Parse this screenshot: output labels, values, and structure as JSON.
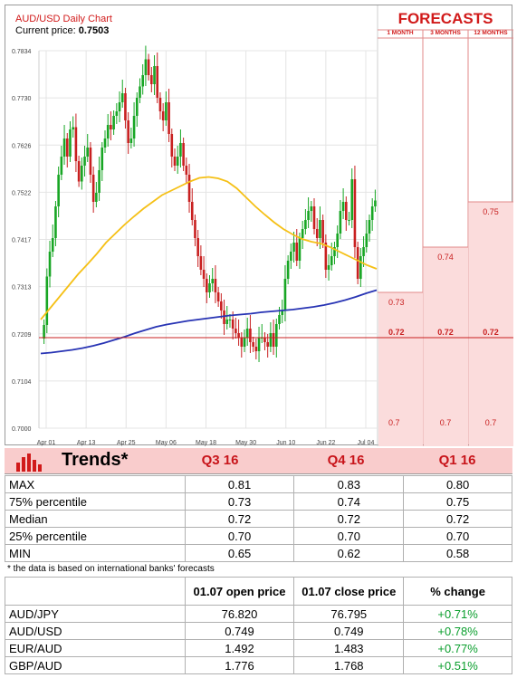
{
  "chart_data": {
    "type": "candlestick",
    "title": "AUD/USD Daily Chart",
    "current_price_label": "Current price:",
    "current_price": "0.7503",
    "y_ticks": [
      "0.7834",
      "0.7730",
      "0.7626",
      "0.7522",
      "0.7417",
      "0.7313",
      "0.7209",
      "0.7104",
      "0.7000"
    ],
    "ylim": [
      0.7,
      0.7834
    ],
    "x_ticks": [
      "Apr 01",
      "Apr 13",
      "Apr 25",
      "May 06",
      "May 18",
      "May 30",
      "Jun 10",
      "Jun 22",
      "Jul 04"
    ],
    "candles_close": [
      0.7228,
      0.7335,
      0.739,
      0.742,
      0.749,
      0.756,
      0.76,
      0.764,
      0.76,
      0.766,
      0.7665,
      0.759,
      0.7545,
      0.758,
      0.76,
      0.762,
      0.756,
      0.75,
      0.752,
      0.757,
      0.762,
      0.764,
      0.767,
      0.766,
      0.769,
      0.77,
      0.772,
      0.774,
      0.768,
      0.763,
      0.764,
      0.769,
      0.773,
      0.7755,
      0.778,
      0.7815,
      0.778,
      0.776,
      0.78,
      0.773,
      0.77,
      0.768,
      0.772,
      0.765,
      0.76,
      0.758,
      0.76,
      0.763,
      0.758,
      0.756,
      0.75,
      0.746,
      0.742,
      0.738,
      0.735,
      0.733,
      0.73,
      0.732,
      0.733,
      0.73,
      0.728,
      0.726,
      0.723,
      0.724,
      0.724,
      0.722,
      0.721,
      0.72,
      0.718,
      0.72,
      0.722,
      0.719,
      0.718,
      0.717,
      0.72,
      0.72,
      0.719,
      0.718,
      0.721,
      0.718,
      0.723,
      0.725,
      0.726,
      0.733,
      0.737,
      0.739,
      0.741,
      0.737,
      0.742,
      0.744,
      0.746,
      0.748,
      0.749,
      0.744,
      0.742,
      0.746,
      0.741,
      0.735,
      0.736,
      0.738,
      0.74,
      0.743,
      0.748,
      0.75,
      0.746,
      0.746,
      0.755,
      0.74,
      0.733,
      0.738,
      0.74,
      0.743,
      0.746,
      0.749,
      0.7503
    ],
    "sma_short": [
      0.724,
      0.7265,
      0.729,
      0.7315,
      0.734,
      0.7362,
      0.7385,
      0.741,
      0.743,
      0.745,
      0.7468,
      0.7485,
      0.75,
      0.7515,
      0.7525,
      0.7535,
      0.7545,
      0.7553,
      0.7555,
      0.7552,
      0.7545,
      0.753,
      0.751,
      0.749,
      0.7472,
      0.7455,
      0.744,
      0.7428,
      0.7418,
      0.7412,
      0.7408,
      0.74,
      0.739,
      0.738,
      0.737,
      0.736,
      0.7352
    ],
    "sma_long": [
      0.7165,
      0.7167,
      0.717,
      0.7173,
      0.7177,
      0.7182,
      0.7188,
      0.7195,
      0.7202,
      0.721,
      0.7217,
      0.7224,
      0.7229,
      0.7233,
      0.7237,
      0.724,
      0.7243,
      0.7246,
      0.7249,
      0.7251,
      0.7253,
      0.7256,
      0.7258,
      0.726,
      0.7262,
      0.7265,
      0.7268,
      0.7272,
      0.7277,
      0.7283,
      0.729,
      0.7298,
      0.7305
    ],
    "colors": {
      "bull": "#18a624",
      "bear": "#c82020",
      "sma_short": "#f5c016",
      "sma_long": "#2834b4"
    }
  },
  "forecasts": {
    "title": "FORECASTS",
    "columns": [
      "1 MONTH",
      "3 MONTHS",
      "12 MONTHS"
    ],
    "levels": [
      {
        "label": "0.75",
        "value": 0.75
      },
      {
        "label": "0.74",
        "value": 0.74
      },
      {
        "label": "0.73",
        "value": 0.73
      },
      {
        "label": "0.72",
        "value": 0.72
      },
      {
        "label": "0.7",
        "value": 0.7
      }
    ],
    "cells": [
      [
        "0.73",
        "0.72",
        "0.7"
      ],
      [
        "0.74",
        "0.72",
        "0.7"
      ],
      [
        "0.75",
        "0.72",
        "0.7"
      ]
    ]
  },
  "trends": {
    "title": "Trends*",
    "columns": [
      "Q3 16",
      "Q4 16",
      "Q1 16"
    ],
    "rows": [
      {
        "label": "MAX",
        "values": [
          "0.81",
          "0.83",
          "0.80"
        ]
      },
      {
        "label": "75% percentile",
        "values": [
          "0.73",
          "0.74",
          "0.75"
        ]
      },
      {
        "label": "Median",
        "values": [
          "0.72",
          "0.72",
          "0.72"
        ]
      },
      {
        "label": "25% percentile",
        "values": [
          "0.70",
          "0.70",
          "0.70"
        ]
      },
      {
        "label": "MIN",
        "values": [
          "0.65",
          "0.62",
          "0.58"
        ]
      }
    ],
    "note": "* the data is based on international banks' forecasts"
  },
  "prices": {
    "headers": [
      "",
      "01.07 open price",
      "01.07 close price",
      "% change"
    ],
    "rows": [
      {
        "pair": "AUD/JPY",
        "open": "76.820",
        "close": "76.795",
        "change": "+0.71%"
      },
      {
        "pair": "AUD/USD",
        "open": "0.749",
        "close": "0.749",
        "change": "+0.78%"
      },
      {
        "pair": "EUR/AUD",
        "open": "1.492",
        "close": "1.483",
        "change": "+0.77%"
      },
      {
        "pair": "GBP/AUD",
        "open": "1.776",
        "close": "1.768",
        "change": "+0.51%"
      }
    ]
  }
}
